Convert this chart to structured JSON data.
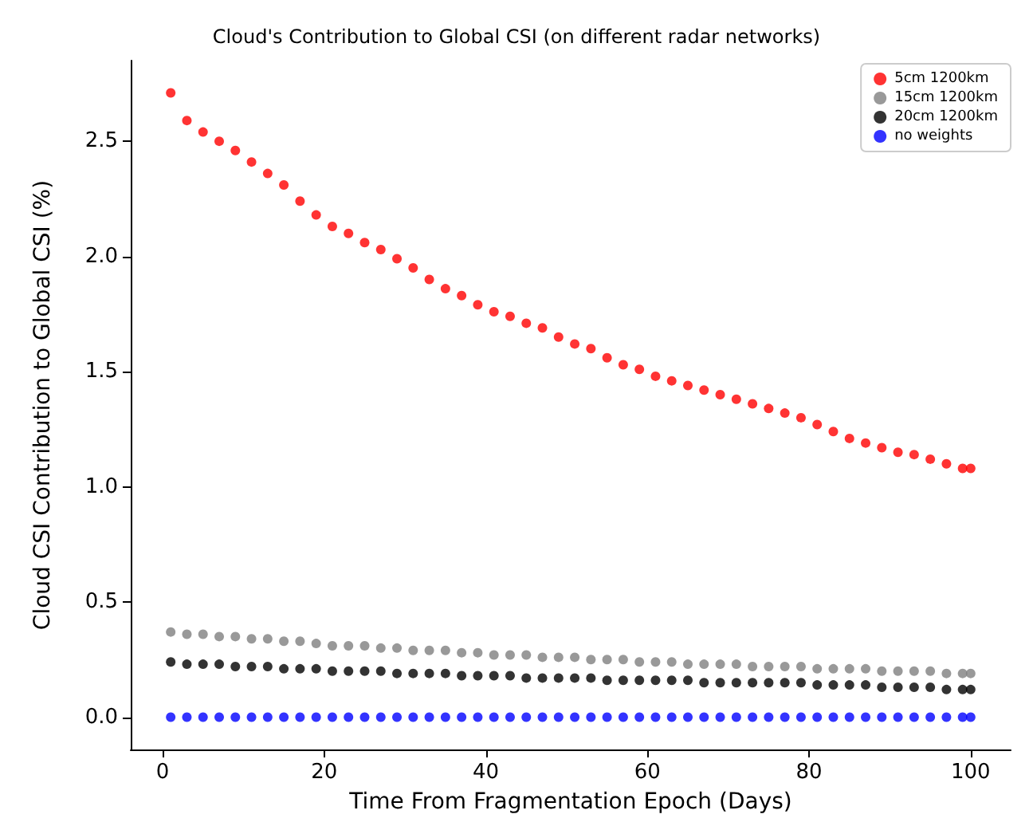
{
  "chart_data": {
    "type": "scatter",
    "title": "Cloud's Contribution to Global CSI (on different radar networks)",
    "xlabel": "Time From Fragmentation Epoch (Days)",
    "ylabel": "Cloud CSI Contribution to Global CSI (%)",
    "x": [
      1,
      3,
      5,
      7,
      9,
      11,
      13,
      15,
      17,
      19,
      21,
      23,
      25,
      27,
      29,
      31,
      33,
      35,
      37,
      39,
      41,
      43,
      45,
      47,
      49,
      51,
      53,
      55,
      57,
      59,
      61,
      63,
      65,
      67,
      69,
      71,
      73,
      75,
      77,
      79,
      81,
      83,
      85,
      87,
      89,
      91,
      93,
      95,
      97,
      99,
      100
    ],
    "series": [
      {
        "name": "5cm 1200km",
        "color": "#ff0000",
        "values": [
          2.71,
          2.59,
          2.54,
          2.5,
          2.46,
          2.41,
          2.36,
          2.31,
          2.24,
          2.18,
          2.13,
          2.1,
          2.06,
          2.03,
          1.99,
          1.95,
          1.9,
          1.86,
          1.83,
          1.79,
          1.76,
          1.74,
          1.71,
          1.69,
          1.65,
          1.62,
          1.6,
          1.56,
          1.53,
          1.51,
          1.48,
          1.46,
          1.44,
          1.42,
          1.4,
          1.38,
          1.36,
          1.34,
          1.32,
          1.3,
          1.27,
          1.24,
          1.21,
          1.19,
          1.17,
          1.15,
          1.14,
          1.12,
          1.1,
          1.08,
          1.08
        ]
      },
      {
        "name": "15cm 1200km",
        "color": "#808080",
        "values": [
          0.37,
          0.36,
          0.36,
          0.35,
          0.35,
          0.34,
          0.34,
          0.33,
          0.33,
          0.32,
          0.31,
          0.31,
          0.31,
          0.3,
          0.3,
          0.29,
          0.29,
          0.29,
          0.28,
          0.28,
          0.27,
          0.27,
          0.27,
          0.26,
          0.26,
          0.26,
          0.25,
          0.25,
          0.25,
          0.24,
          0.24,
          0.24,
          0.23,
          0.23,
          0.23,
          0.23,
          0.22,
          0.22,
          0.22,
          0.22,
          0.21,
          0.21,
          0.21,
          0.21,
          0.2,
          0.2,
          0.2,
          0.2,
          0.19,
          0.19,
          0.19
        ]
      },
      {
        "name": "20cm 1200km",
        "color": "#000000",
        "values": [
          0.24,
          0.23,
          0.23,
          0.23,
          0.22,
          0.22,
          0.22,
          0.21,
          0.21,
          0.21,
          0.2,
          0.2,
          0.2,
          0.2,
          0.19,
          0.19,
          0.19,
          0.19,
          0.18,
          0.18,
          0.18,
          0.18,
          0.17,
          0.17,
          0.17,
          0.17,
          0.17,
          0.16,
          0.16,
          0.16,
          0.16,
          0.16,
          0.16,
          0.15,
          0.15,
          0.15,
          0.15,
          0.15,
          0.15,
          0.15,
          0.14,
          0.14,
          0.14,
          0.14,
          0.13,
          0.13,
          0.13,
          0.13,
          0.12,
          0.12,
          0.12
        ]
      },
      {
        "name": "no weights",
        "color": "#0000ff",
        "values": [
          0,
          0,
          0,
          0,
          0,
          0,
          0,
          0,
          0,
          0,
          0,
          0,
          0,
          0,
          0,
          0,
          0,
          0,
          0,
          0,
          0,
          0,
          0,
          0,
          0,
          0,
          0,
          0,
          0,
          0,
          0,
          0,
          0,
          0,
          0,
          0,
          0,
          0,
          0,
          0,
          0,
          0,
          0,
          0,
          0,
          0,
          0,
          0,
          0,
          0,
          0
        ]
      }
    ],
    "xlim": [
      -3.95,
      104.95
    ],
    "xticks": [
      0,
      20,
      40,
      60,
      80,
      100
    ],
    "ylim": [
      -0.14,
      2.85
    ],
    "yticks": [
      {
        "value": 0,
        "label": "0.0"
      },
      {
        "value": 0.5,
        "label": "0.5"
      },
      {
        "value": 1,
        "label": "1.0"
      },
      {
        "value": 1.5,
        "label": "1.5"
      },
      {
        "value": 2,
        "label": "2.0"
      },
      {
        "value": 2.5,
        "label": "2.5"
      }
    ],
    "legend": "top right",
    "marker": "circle",
    "grid": false
  }
}
